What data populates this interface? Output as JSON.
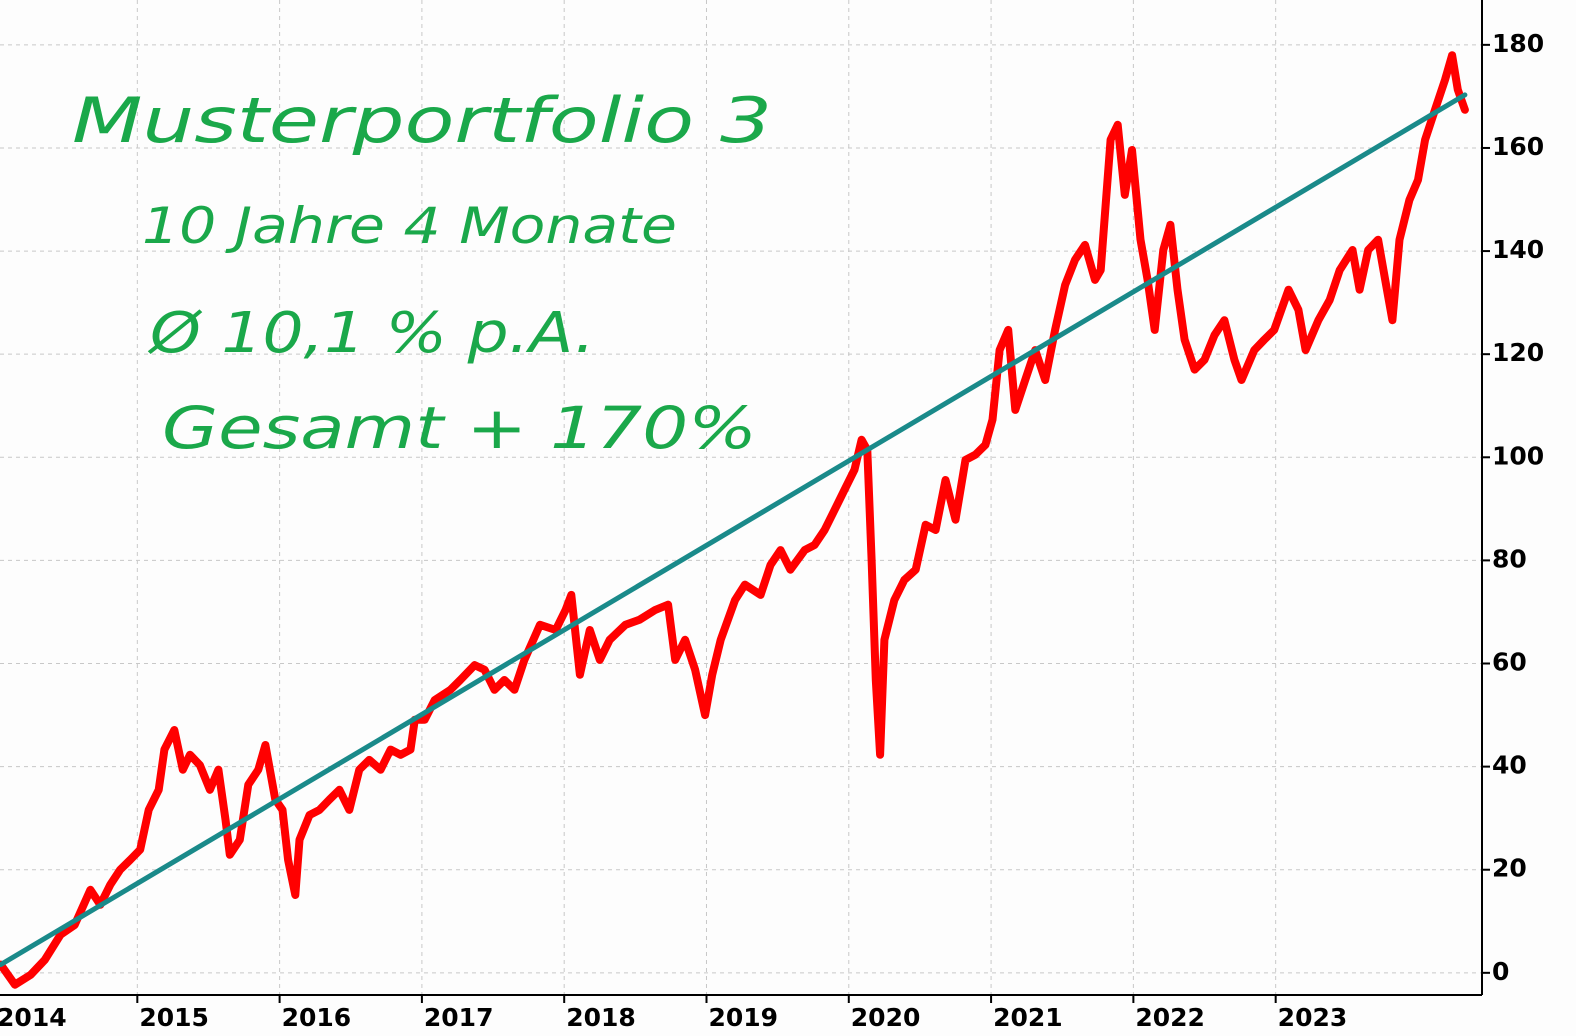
{
  "chart_data": {
    "type": "line",
    "annotations": [
      "Musterportfolio 3",
      "10 Jahre 4 Monate",
      "Ø 10,1 % p.A.",
      "Gesamt + 170%"
    ],
    "xlim": [
      2014.035,
      2024.45
    ],
    "xticks": [
      2014,
      2015,
      2016,
      2017,
      2018,
      2019,
      2020,
      2021,
      2022,
      2023
    ],
    "ylim": [
      -4.3,
      188.7
    ],
    "yticks": [
      0,
      20,
      40,
      60,
      80,
      100,
      120,
      140,
      160,
      180
    ],
    "grid": true,
    "series": [
      {
        "color": "#ff0000",
        "x": [
          2014.04,
          2014.14,
          2014.25,
          2014.35,
          2014.46,
          2014.56,
          2014.67,
          2014.74,
          2014.81,
          2014.88,
          2014.95,
          2015.02,
          2015.08,
          2015.15,
          2015.19,
          2015.26,
          2015.32,
          2015.37,
          2015.44,
          2015.51,
          2015.57,
          2015.62,
          2015.65,
          2015.72,
          2015.78,
          2015.85,
          2015.9,
          2015.97,
          2016.02,
          2016.06,
          2016.11,
          2016.14,
          2016.21,
          2016.28,
          2016.35,
          2016.42,
          2016.49,
          2016.56,
          2016.63,
          2016.71,
          2016.78,
          2016.85,
          2016.92,
          2016.95,
          2017.02,
          2017.09,
          2017.2,
          2017.27,
          2017.37,
          2017.44,
          2017.51,
          2017.58,
          2017.65,
          2017.72,
          2017.83,
          2017.94,
          2018.01,
          2018.05,
          2018.11,
          2018.18,
          2018.25,
          2018.32,
          2018.43,
          2018.53,
          2018.64,
          2018.73,
          2018.78,
          2018.85,
          2018.92,
          2018.99,
          2019.04,
          2019.1,
          2019.2,
          2019.27,
          2019.38,
          2019.45,
          2019.52,
          2019.59,
          2019.69,
          2019.76,
          2019.83,
          2019.9,
          2019.97,
          2020.04,
          2020.09,
          2020.13,
          2020.16,
          2020.19,
          2020.22,
          2020.25,
          2020.32,
          2020.39,
          2020.47,
          2020.54,
          2020.61,
          2020.68,
          2020.75,
          2020.82,
          2020.89,
          2020.96,
          2021.01,
          2021.06,
          2021.12,
          2021.17,
          2021.24,
          2021.31,
          2021.38,
          2021.45,
          2021.52,
          2021.59,
          2021.66,
          2021.73,
          2021.77,
          2021.84,
          2021.89,
          2021.94,
          2021.99,
          2022.05,
          2022.1,
          2022.15,
          2022.21,
          2022.26,
          2022.31,
          2022.36,
          2022.43,
          2022.5,
          2022.57,
          2022.64,
          2022.71,
          2022.76,
          2022.85,
          2022.92,
          2022.99,
          2023.09,
          2023.16,
          2023.21,
          2023.3,
          2023.38,
          2023.45,
          2023.54,
          2023.59,
          2023.65,
          2023.72,
          2023.77,
          2023.82,
          2023.87,
          2023.94,
          2024.0,
          2024.05,
          2024.12,
          2024.19,
          2024.24,
          2024.28,
          2024.33
        ],
        "values": [
          1.6,
          -2.3,
          -0.4,
          2.5,
          7.4,
          9.3,
          16.1,
          13.2,
          17.1,
          20.0,
          21.9,
          23.9,
          31.6,
          35.5,
          43.3,
          47.1,
          39.4,
          42.3,
          40.3,
          35.5,
          39.4,
          29.7,
          22.9,
          25.8,
          36.5,
          39.4,
          44.2,
          33.6,
          31.6,
          21.9,
          15.1,
          25.8,
          30.6,
          31.6,
          33.6,
          35.5,
          31.6,
          39.4,
          41.3,
          39.4,
          43.3,
          42.3,
          43.3,
          49.1,
          49.1,
          52.9,
          54.9,
          56.8,
          59.7,
          58.8,
          54.9,
          56.8,
          54.9,
          60.7,
          67.5,
          66.5,
          70.4,
          73.3,
          57.8,
          66.5,
          60.7,
          64.6,
          67.5,
          68.5,
          70.4,
          71.4,
          60.7,
          64.6,
          58.8,
          50.0,
          57.8,
          64.6,
          72.3,
          75.3,
          73.3,
          79.1,
          82.0,
          78.2,
          82.0,
          83.0,
          85.9,
          89.8,
          93.7,
          97.6,
          103.4,
          101.4,
          80.1,
          56.8,
          42.3,
          64.6,
          72.3,
          76.2,
          78.2,
          86.9,
          85.9,
          95.6,
          87.9,
          99.5,
          100.5,
          102.4,
          107.3,
          120.8,
          124.7,
          109.2,
          115.0,
          120.8,
          115.0,
          124.7,
          133.4,
          138.3,
          141.2,
          134.4,
          136.3,
          161.6,
          164.5,
          150.9,
          159.6,
          142.2,
          134.4,
          124.7,
          140.2,
          145.1,
          132.5,
          122.8,
          117.0,
          118.9,
          123.7,
          126.6,
          118.9,
          115.0,
          120.8,
          122.8,
          124.7,
          132.5,
          128.6,
          120.8,
          126.6,
          130.5,
          136.3,
          140.2,
          132.5,
          140.2,
          142.2,
          134.4,
          126.6,
          142.2,
          149.9,
          153.8,
          161.6,
          167.4,
          173.2,
          178.0,
          171.3,
          167.4
        ]
      },
      {
        "color": "#1a8a8a",
        "x": [
          2014.04,
          2024.33
        ],
        "values": [
          1.6,
          170.3
        ]
      }
    ]
  }
}
